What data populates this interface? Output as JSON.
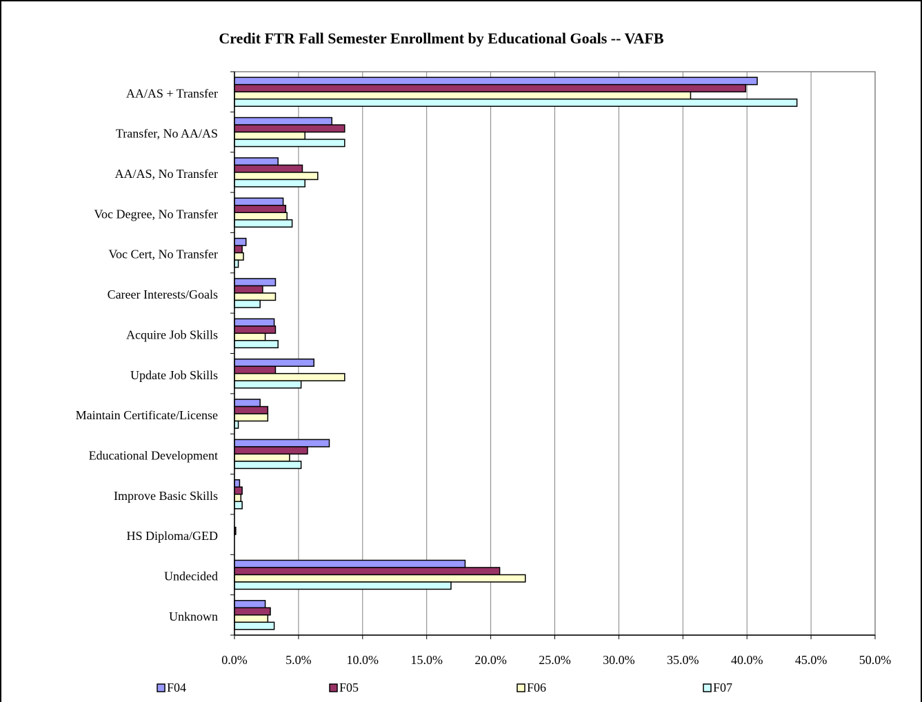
{
  "chart_data": {
    "type": "bar",
    "orientation": "horizontal",
    "title": "Credit FTR Fall Semester Enrollment by Educational Goals -- VAFB",
    "categories": [
      "AA/AS + Transfer",
      "Transfer, No AA/AS",
      "AA/AS, No Transfer",
      "Voc Degree, No Transfer",
      "Voc Cert, No Transfer",
      "Career Interests/Goals",
      "Acquire Job Skills",
      "Update Job Skills",
      "Maintain Certificate/License",
      "Educational Development",
      "Improve Basic Skills",
      "HS Diploma/GED",
      "Undecided",
      "Unknown"
    ],
    "series": [
      {
        "name": "F04",
        "color": "#9999ff",
        "values": [
          40.8,
          7.6,
          3.4,
          3.8,
          0.9,
          3.2,
          3.1,
          6.2,
          2.0,
          7.4,
          0.4,
          0,
          18.0,
          2.4
        ]
      },
      {
        "name": "F05",
        "color": "#993366",
        "values": [
          39.9,
          8.6,
          5.3,
          4.0,
          0.6,
          2.2,
          3.2,
          3.2,
          2.6,
          5.7,
          0.6,
          0.1,
          20.7,
          2.8
        ]
      },
      {
        "name": "F06",
        "color": "#ffffcc",
        "values": [
          35.6,
          5.5,
          6.5,
          4.1,
          0.7,
          3.2,
          2.4,
          8.6,
          2.6,
          4.3,
          0.5,
          0,
          22.7,
          2.6
        ]
      },
      {
        "name": "F07",
        "color": "#ccffff",
        "values": [
          43.9,
          8.6,
          5.5,
          4.5,
          0.3,
          2.0,
          3.4,
          5.2,
          0.3,
          5.2,
          0.6,
          0,
          16.9,
          3.1
        ]
      }
    ],
    "xlim": [
      0,
      50
    ],
    "xticks": [
      {
        "value": 0,
        "label": "0.0%"
      },
      {
        "value": 5,
        "label": "5.0%"
      },
      {
        "value": 10,
        "label": "10.0%"
      },
      {
        "value": 15,
        "label": "15.0%"
      },
      {
        "value": 20,
        "label": "20.0%"
      },
      {
        "value": 25,
        "label": "25.0%"
      },
      {
        "value": 30,
        "label": "30.0%"
      },
      {
        "value": 35,
        "label": "35.0%"
      },
      {
        "value": 40,
        "label": "40.0%"
      },
      {
        "value": 45,
        "label": "45.0%"
      },
      {
        "value": 50,
        "label": "50.0%"
      }
    ],
    "grid": true,
    "legend": "bottom"
  }
}
